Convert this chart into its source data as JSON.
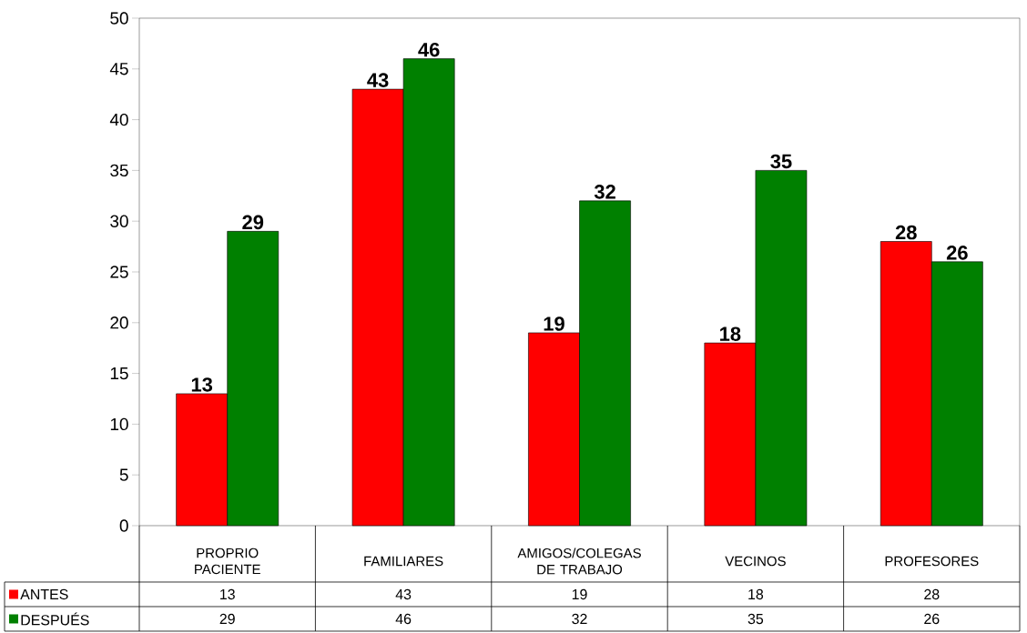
{
  "chart_data": {
    "type": "bar",
    "categories": [
      "PROPRIO PACIENTE",
      "FAMILIARES",
      "AMIGOS/COLEGAS DE TRABAJO",
      "VECINOS",
      "PROFESORES"
    ],
    "series": [
      {
        "name": "ANTES",
        "color": "#ff0000",
        "values": [
          13,
          43,
          19,
          18,
          28
        ]
      },
      {
        "name": "DESPUÉS",
        "color": "#008000",
        "values": [
          29,
          46,
          32,
          35,
          26
        ]
      }
    ],
    "ylim": [
      0,
      50
    ],
    "yticks": [
      0,
      5,
      10,
      15,
      20,
      25,
      30,
      35,
      40,
      45,
      50
    ],
    "legend": "bottom left",
    "data_labels": true,
    "annotations": [
      "13",
      "43",
      "19",
      "18",
      "28",
      "29",
      "46",
      "32",
      "35",
      "26"
    ]
  }
}
